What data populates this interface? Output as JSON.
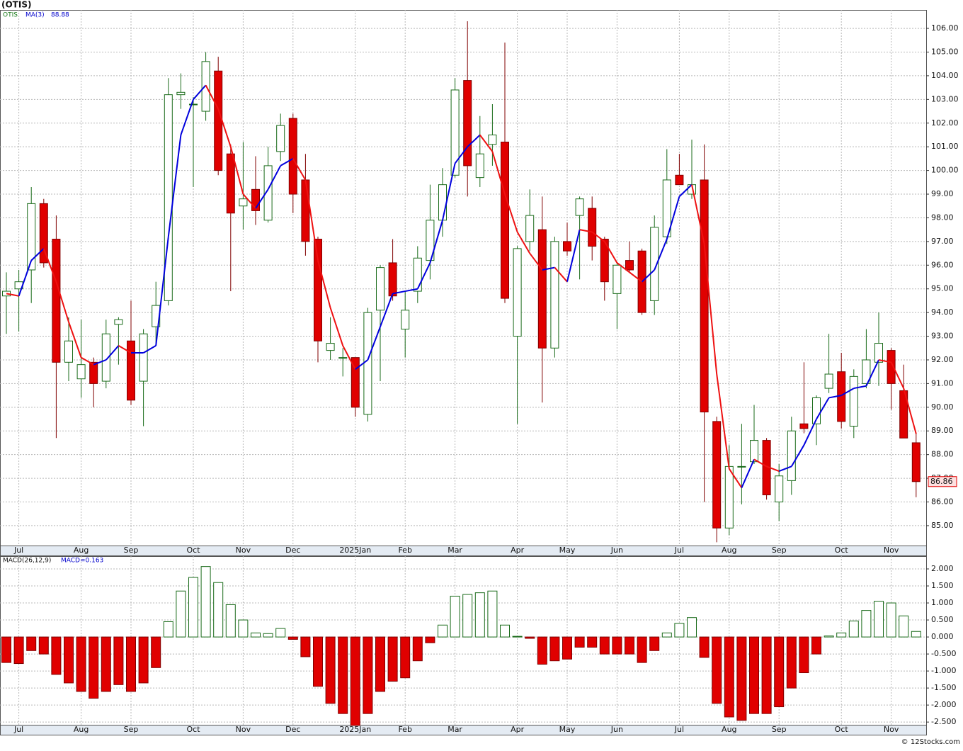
{
  "chart_data": [
    {
      "type": "candlestick",
      "title": "(OTIS)",
      "ticker": "OTIS",
      "categories": [
        null,
        "Jul",
        null,
        null,
        null,
        null,
        "Aug",
        null,
        null,
        null,
        "Sep",
        null,
        null,
        null,
        null,
        "Oct",
        null,
        null,
        null,
        "Nov",
        null,
        null,
        null,
        "Dec",
        null,
        null,
        null,
        null,
        "2025Jan",
        null,
        null,
        null,
        "Feb",
        null,
        null,
        null,
        "Mar",
        null,
        null,
        null,
        null,
        "Apr",
        null,
        null,
        null,
        "May",
        null,
        null,
        null,
        "Jun",
        null,
        null,
        null,
        null,
        "Jul",
        null,
        null,
        null,
        "Aug",
        null,
        null,
        null,
        "Sep",
        null,
        null,
        null,
        null,
        "Oct",
        null,
        null,
        null,
        "Nov",
        null,
        null
      ],
      "open": [
        94.7,
        95.0,
        95.8,
        98.6,
        97.1,
        91.9,
        91.2,
        91.9,
        91.1,
        93.5,
        92.8,
        91.1,
        93.4,
        94.5,
        103.2,
        102.8,
        102.5,
        104.2,
        100.7,
        98.5,
        99.2,
        97.9,
        100.8,
        102.2,
        99.6,
        97.1,
        92.4,
        92.1,
        92.1,
        89.7,
        94.1,
        96.1,
        93.3,
        94.9,
        96.2,
        97.9,
        99.8,
        103.8,
        99.7,
        101.1,
        101.2,
        93.0,
        97.0,
        97.5,
        92.5,
        97.0,
        98.1,
        98.4,
        97.1,
        94.8,
        96.2,
        96.6,
        94.5,
        97.2,
        99.8,
        99.0,
        99.6,
        89.4,
        84.9,
        87.5,
        87.7,
        88.6,
        86.0,
        86.9,
        89.3,
        89.3,
        90.8,
        91.5,
        89.2,
        91.0,
        91.9,
        92.4,
        90.7,
        88.5
      ],
      "high": [
        95.7,
        95.8,
        99.3,
        98.8,
        98.1,
        93.8,
        93.7,
        92.1,
        93.7,
        93.8,
        94.5,
        93.3,
        95.3,
        103.9,
        104.1,
        103.1,
        105.0,
        104.8,
        101.1,
        101.2,
        100.6,
        101.0,
        102.4,
        102.4,
        100.7,
        97.2,
        93.8,
        92.5,
        92.1,
        94.2,
        96.0,
        97.1,
        94.9,
        96.8,
        99.4,
        100.1,
        103.9,
        106.3,
        102.3,
        102.8,
        105.4,
        96.8,
        99.2,
        98.9,
        97.2,
        97.8,
        98.9,
        98.9,
        97.2,
        96.1,
        97.0,
        96.7,
        98.1,
        100.9,
        100.7,
        101.3,
        101.1,
        89.6,
        88.4,
        89.3,
        90.1,
        88.7,
        87.6,
        89.6,
        91.9,
        90.5,
        93.1,
        92.3,
        91.6,
        93.3,
        94.0,
        92.5,
        91.8,
        88.9
      ],
      "low": [
        93.1,
        93.2,
        94.4,
        95.9,
        88.7,
        91.1,
        90.4,
        90.0,
        90.8,
        91.8,
        90.1,
        89.2,
        92.6,
        94.3,
        102.6,
        99.3,
        102.1,
        99.8,
        94.9,
        97.5,
        97.7,
        97.8,
        100.4,
        98.2,
        96.4,
        91.9,
        92.0,
        91.3,
        89.6,
        89.4,
        91.1,
        94.5,
        92.1,
        94.4,
        95.4,
        97.2,
        99.7,
        98.9,
        99.3,
        100.2,
        94.4,
        89.3,
        96.6,
        90.2,
        92.1,
        96.4,
        95.4,
        96.2,
        94.5,
        93.3,
        95.7,
        93.9,
        93.9,
        96.9,
        99.4,
        98.8,
        86.0,
        84.3,
        84.6,
        85.9,
        87.6,
        86.1,
        85.2,
        86.3,
        88.9,
        88.4,
        90.6,
        89.1,
        88.7,
        90.8,
        90.9,
        89.9,
        88.7,
        86.2
      ],
      "close": [
        94.9,
        95.3,
        98.6,
        96.1,
        91.9,
        92.8,
        91.8,
        91.0,
        93.1,
        93.7,
        90.3,
        93.1,
        94.3,
        103.2,
        103.3,
        102.8,
        104.6,
        100.0,
        98.2,
        98.8,
        98.3,
        100.2,
        101.9,
        99.0,
        97.0,
        92.8,
        92.7,
        92.1,
        90.0,
        94.0,
        95.9,
        94.7,
        94.1,
        96.3,
        97.9,
        99.4,
        103.4,
        100.2,
        100.7,
        101.5,
        94.6,
        96.7,
        98.1,
        92.5,
        97.0,
        96.6,
        98.8,
        96.8,
        95.3,
        96.0,
        95.8,
        94.0,
        97.6,
        99.6,
        99.4,
        99.4,
        89.8,
        84.9,
        87.5,
        87.5,
        88.6,
        86.3,
        87.1,
        89.0,
        89.1,
        90.4,
        91.4,
        89.4,
        91.3,
        92.0,
        92.7,
        91.0,
        88.7,
        86.86
      ],
      "last_label": "86.86",
      "up_color": "#1a6b1a",
      "down_color": "#e00000",
      "ma": {
        "name": "MA(3)",
        "last_label": "88.88",
        "up_color": "#0000dd",
        "down_color": "#ee1111",
        "values": [
          94.8,
          94.7,
          96.2,
          96.7,
          95.3,
          93.6,
          92.1,
          91.8,
          92.0,
          92.6,
          92.3,
          92.3,
          92.6,
          97.2,
          101.5,
          103.0,
          103.6,
          102.6,
          101.0,
          99.0,
          98.4,
          99.2,
          100.2,
          100.5,
          99.6,
          96.2,
          94.2,
          92.6,
          91.6,
          92.0,
          93.4,
          94.8,
          94.9,
          95.0,
          96.1,
          97.9,
          100.3,
          101.0,
          101.5,
          100.8,
          99.0,
          97.4,
          96.5,
          95.8,
          95.9,
          95.3,
          97.5,
          97.4,
          97.0,
          96.1,
          95.7,
          95.3,
          95.8,
          97.1,
          98.9,
          99.4,
          96.9,
          91.4,
          87.4,
          86.6,
          87.8,
          87.5,
          87.3,
          87.5,
          88.4,
          89.5,
          90.4,
          90.5,
          90.8,
          90.9,
          92.0,
          91.9,
          90.8,
          88.88
        ]
      },
      "ylim": [
        84.16,
        106.78
      ],
      "yticks": [
        {
          "value": 85,
          "label": "85.00"
        },
        {
          "value": 86,
          "label": "86.00"
        },
        {
          "value": 87,
          "label": "87.00"
        },
        {
          "value": 88,
          "label": "88.00"
        },
        {
          "value": 89,
          "label": "89.00"
        },
        {
          "value": 90,
          "label": "90.00"
        },
        {
          "value": 91,
          "label": "91.00"
        },
        {
          "value": 92,
          "label": "92.00"
        },
        {
          "value": 93,
          "label": "93.00"
        },
        {
          "value": 94,
          "label": "94.00"
        },
        {
          "value": 95,
          "label": "95.00"
        },
        {
          "value": 96,
          "label": "96.00"
        },
        {
          "value": 97,
          "label": "97.00"
        },
        {
          "value": 98,
          "label": "98.00"
        },
        {
          "value": 99,
          "label": "99.00"
        },
        {
          "value": 100,
          "label": "100.00"
        },
        {
          "value": 101,
          "label": "101.00"
        },
        {
          "value": 102,
          "label": "102.00"
        },
        {
          "value": 103,
          "label": "103.00"
        },
        {
          "value": 104,
          "label": "104.00"
        },
        {
          "value": 105,
          "label": "105.00"
        },
        {
          "value": 106,
          "label": "106.00"
        }
      ],
      "grid": true
    },
    {
      "type": "bar",
      "name": "MACD(26,12,9)",
      "last_label": "MACD=0.163",
      "up_color": "#1a6b1a",
      "down_color": "#e00000",
      "values": [
        -0.75,
        -0.78,
        -0.4,
        -0.5,
        -1.1,
        -1.35,
        -1.6,
        -1.8,
        -1.6,
        -1.4,
        -1.6,
        -1.35,
        -0.9,
        0.45,
        1.35,
        1.75,
        2.07,
        1.6,
        0.95,
        0.5,
        0.12,
        0.1,
        0.25,
        -0.07,
        -0.58,
        -1.45,
        -1.95,
        -2.25,
        -2.6,
        -2.25,
        -1.6,
        -1.3,
        -1.2,
        -0.7,
        -0.17,
        0.35,
        1.2,
        1.25,
        1.3,
        1.35,
        0.35,
        0.02,
        -0.04,
        -0.8,
        -0.7,
        -0.65,
        -0.3,
        -0.3,
        -0.5,
        -0.5,
        -0.5,
        -0.75,
        -0.4,
        0.12,
        0.4,
        0.57,
        -0.6,
        -1.95,
        -2.35,
        -2.45,
        -2.25,
        -2.25,
        -2.05,
        -1.5,
        -1.05,
        -0.5,
        0.03,
        0.12,
        0.47,
        0.78,
        1.05,
        1.0,
        0.62,
        0.163
      ],
      "ylim": [
        -2.58,
        2.375
      ],
      "yticks": [
        {
          "value": 2,
          "label": "2.000"
        },
        {
          "value": 1.5,
          "label": "1.500"
        },
        {
          "value": 1,
          "label": "1.000"
        },
        {
          "value": 0.5,
          "label": "0.500"
        },
        {
          "value": 0,
          "label": "0.000"
        },
        {
          "value": -0.5,
          "label": "-0.500"
        },
        {
          "value": -1,
          "label": "-1.000"
        },
        {
          "value": -1.5,
          "label": "-1.500"
        },
        {
          "value": -2,
          "label": "-2.000"
        },
        {
          "value": -2.5,
          "label": "-2.500"
        }
      ],
      "grid": true
    }
  ],
  "footer": "© 12Stocks.com"
}
